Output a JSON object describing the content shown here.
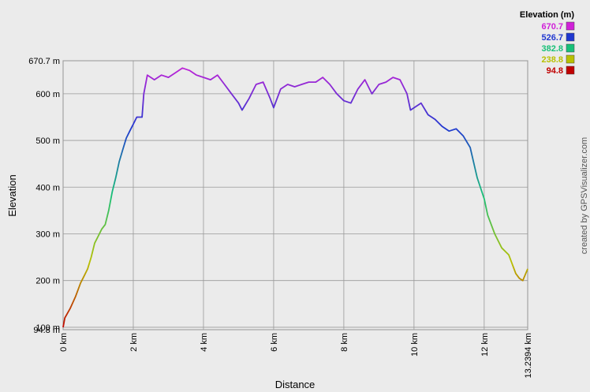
{
  "chart_data": {
    "type": "line",
    "x_label": "Distance",
    "y_label": "Elevation",
    "watermark": "created by GPSVisualizer.com",
    "x": [
      0,
      0.05,
      0.2,
      0.35,
      0.5,
      0.6,
      0.7,
      0.8,
      0.9,
      1.0,
      1.1,
      1.2,
      1.3,
      1.4,
      1.5,
      1.6,
      1.7,
      1.8,
      1.9,
      2.0,
      2.1,
      2.25,
      2.3,
      2.4,
      2.6,
      2.8,
      3.0,
      3.2,
      3.4,
      3.6,
      3.8,
      4.0,
      4.2,
      4.4,
      4.6,
      4.8,
      5.0,
      5.1,
      5.3,
      5.5,
      5.7,
      5.9,
      6.0,
      6.2,
      6.4,
      6.6,
      6.8,
      7.0,
      7.2,
      7.4,
      7.6,
      7.8,
      8.0,
      8.2,
      8.4,
      8.6,
      8.8,
      9.0,
      9.2,
      9.4,
      9.6,
      9.8,
      9.9,
      10.0,
      10.2,
      10.4,
      10.6,
      10.8,
      11.0,
      11.2,
      11.4,
      11.6,
      11.8,
      12.0,
      12.1,
      12.3,
      12.5,
      12.7,
      12.9,
      13.0,
      13.1,
      13.2394
    ],
    "series": [
      {
        "name": "Elevation",
        "values": [
          100,
          120,
          140,
          165,
          195,
          210,
          225,
          250,
          280,
          295,
          310,
          320,
          350,
          390,
          420,
          455,
          480,
          505,
          520,
          535,
          550,
          550,
          600,
          640,
          630,
          640,
          635,
          645,
          655,
          650,
          640,
          635,
          630,
          640,
          620,
          600,
          580,
          565,
          590,
          620,
          625,
          590,
          570,
          610,
          620,
          615,
          620,
          625,
          625,
          635,
          620,
          600,
          585,
          580,
          610,
          630,
          600,
          620,
          625,
          635,
          630,
          600,
          565,
          570,
          580,
          555,
          545,
          530,
          520,
          525,
          510,
          485,
          420,
          375,
          340,
          300,
          270,
          255,
          215,
          205,
          200,
          225
        ]
      }
    ],
    "xlim": [
      0,
      13.2394
    ],
    "xticks": [
      {
        "value": 0,
        "label": "0 km"
      },
      {
        "value": 2,
        "label": "2 km"
      },
      {
        "value": 4,
        "label": "4 km"
      },
      {
        "value": 6,
        "label": "6 km"
      },
      {
        "value": 8,
        "label": "8 km"
      },
      {
        "value": 10,
        "label": "10 km"
      },
      {
        "value": 12,
        "label": "12 km"
      },
      {
        "value": 13.2394,
        "label": "13.2394 km"
      }
    ],
    "ylim": [
      94.8,
      670.7
    ],
    "yticks": [
      {
        "value": 94.8,
        "label": "94.8 m"
      },
      {
        "value": 100,
        "label": "100 m"
      },
      {
        "value": 200,
        "label": "200 m"
      },
      {
        "value": 300,
        "label": "300 m"
      },
      {
        "value": 400,
        "label": "400 m"
      },
      {
        "value": 500,
        "label": "500 m"
      },
      {
        "value": 600,
        "label": "600 m"
      },
      {
        "value": 670.7,
        "label": "670.7 m"
      }
    ],
    "grid": true,
    "color_scale": {
      "title": "Elevation (m)",
      "stops": [
        {
          "value": 670.7,
          "color": "#d020d8"
        },
        {
          "value": 526.7,
          "color": "#2038d0"
        },
        {
          "value": 382.8,
          "color": "#18c078"
        },
        {
          "value": 238.8,
          "color": "#b8c000"
        },
        {
          "value": 94.8,
          "color": "#c00000"
        }
      ]
    }
  }
}
